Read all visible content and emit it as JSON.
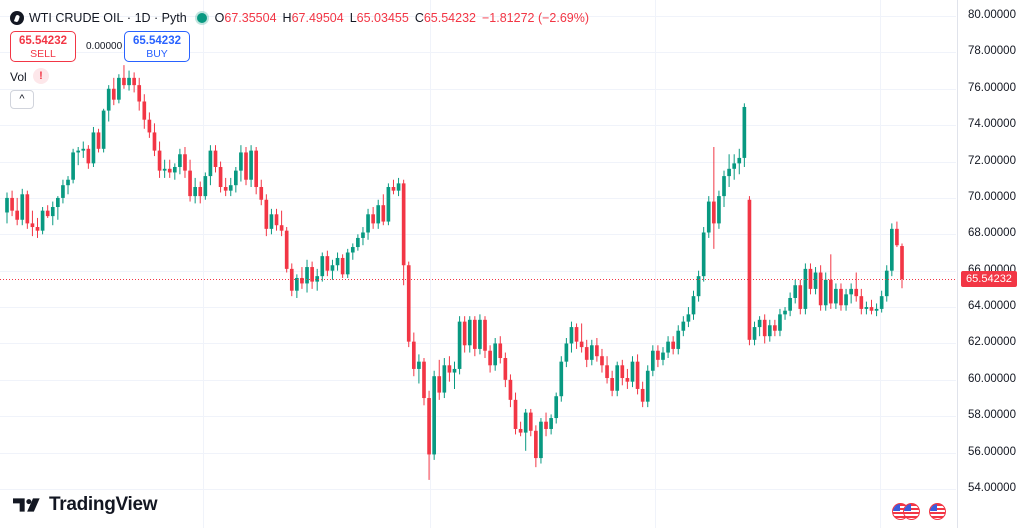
{
  "legend": {
    "symbol": "WTI CRUDE OIL",
    "interval": "1D",
    "source": "Pyth",
    "open_key": "O",
    "open": "67.35504",
    "high_key": "H",
    "high": "67.49504",
    "low_key": "L",
    "low": "65.03455",
    "close_key": "C",
    "close": "65.54232",
    "change": "−1.81272 (−2.69%)"
  },
  "trade": {
    "sell_price": "65.54232",
    "sell_label": "SELL",
    "buy_price": "65.54232",
    "buy_label": "BUY",
    "spread": "0.00000"
  },
  "volume": {
    "label": "Vol",
    "warning": "!"
  },
  "collapse_glyph": "^",
  "brand": {
    "name": "TradingView"
  },
  "colors": {
    "up": "#089981",
    "down": "#f23645",
    "accent": "#2962ff",
    "grid": "#f0f3fa"
  },
  "icons": [
    "symbol-icon",
    "live-dot-icon",
    "warning-icon",
    "chevron-up-icon",
    "tradingview-logo-icon",
    "us-flag-icon"
  ],
  "chart_data": {
    "type": "candlestick",
    "ylim": [
      53.0,
      80.8
    ],
    "yticks": [
      "80.00000",
      "78.00000",
      "76.00000",
      "74.00000",
      "72.00000",
      "70.00000",
      "68.00000",
      "66.00000",
      "64.00000",
      "62.00000",
      "60.00000",
      "58.00000",
      "56.00000",
      "54.00000"
    ],
    "last_price": "65.54232",
    "grid": true,
    "candles": [
      [
        69.2,
        70.3,
        68.6,
        70.0
      ],
      [
        70.0,
        70.4,
        69.0,
        69.3
      ],
      [
        69.3,
        70.0,
        68.5,
        68.8
      ],
      [
        68.8,
        70.5,
        68.5,
        70.2
      ],
      [
        70.2,
        70.4,
        68.3,
        68.6
      ],
      [
        68.6,
        69.3,
        67.9,
        68.4
      ],
      [
        68.4,
        68.9,
        67.8,
        68.2
      ],
      [
        68.2,
        69.5,
        68.0,
        69.3
      ],
      [
        69.3,
        69.6,
        68.9,
        69.0
      ],
      [
        69.0,
        69.8,
        68.5,
        69.5
      ],
      [
        69.5,
        70.1,
        68.8,
        70.0
      ],
      [
        70.0,
        71.0,
        69.7,
        70.7
      ],
      [
        70.7,
        71.2,
        70.2,
        71.0
      ],
      [
        71.0,
        72.7,
        70.8,
        72.5
      ],
      [
        72.5,
        72.8,
        71.8,
        72.6
      ],
      [
        72.6,
        73.1,
        72.2,
        72.7
      ],
      [
        72.7,
        72.9,
        71.6,
        71.9
      ],
      [
        71.9,
        73.9,
        71.7,
        73.6
      ],
      [
        73.6,
        73.8,
        72.5,
        72.7
      ],
      [
        72.7,
        74.9,
        72.5,
        74.8
      ],
      [
        74.8,
        76.2,
        74.2,
        76.0
      ],
      [
        76.0,
        76.6,
        75.1,
        75.4
      ],
      [
        75.4,
        76.8,
        75.2,
        76.6
      ],
      [
        76.6,
        77.3,
        76.0,
        76.2
      ],
      [
        76.2,
        77.0,
        75.9,
        76.6
      ],
      [
        76.6,
        76.9,
        75.8,
        76.2
      ],
      [
        76.2,
        76.6,
        74.8,
        75.3
      ],
      [
        75.3,
        75.7,
        73.8,
        74.3
      ],
      [
        74.3,
        74.7,
        73.3,
        73.6
      ],
      [
        73.6,
        74.1,
        72.3,
        72.6
      ],
      [
        72.6,
        73.1,
        71.1,
        71.5
      ],
      [
        71.5,
        72.1,
        71.1,
        71.6
      ],
      [
        71.6,
        72.1,
        71.1,
        71.4
      ],
      [
        71.4,
        71.9,
        71.0,
        71.7
      ],
      [
        71.7,
        72.7,
        71.3,
        72.4
      ],
      [
        72.4,
        72.8,
        71.1,
        71.5
      ],
      [
        71.5,
        72.1,
        69.8,
        70.1
      ],
      [
        70.1,
        71.1,
        69.7,
        70.6
      ],
      [
        70.6,
        70.9,
        69.7,
        70.1
      ],
      [
        70.1,
        71.4,
        69.9,
        71.2
      ],
      [
        71.2,
        72.9,
        70.7,
        72.6
      ],
      [
        72.6,
        72.9,
        71.4,
        71.7
      ],
      [
        71.7,
        72.0,
        70.3,
        70.6
      ],
      [
        70.6,
        71.1,
        70.1,
        70.4
      ],
      [
        70.4,
        71.1,
        70.1,
        70.7
      ],
      [
        70.7,
        71.7,
        70.3,
        71.5
      ],
      [
        71.5,
        72.9,
        70.9,
        72.5
      ],
      [
        72.5,
        72.8,
        70.7,
        71.0
      ],
      [
        71.0,
        72.9,
        70.6,
        72.6
      ],
      [
        72.6,
        72.8,
        70.2,
        70.6
      ],
      [
        70.6,
        71.0,
        69.6,
        69.9
      ],
      [
        69.9,
        70.2,
        67.9,
        68.3
      ],
      [
        68.3,
        69.4,
        68.0,
        69.1
      ],
      [
        69.1,
        69.4,
        68.2,
        68.5
      ],
      [
        68.5,
        69.3,
        67.9,
        68.2
      ],
      [
        68.2,
        68.4,
        65.9,
        66.1
      ],
      [
        66.1,
        66.4,
        64.6,
        64.9
      ],
      [
        64.9,
        65.8,
        64.5,
        65.6
      ],
      [
        65.6,
        66.2,
        65.0,
        65.3
      ],
      [
        65.3,
        66.6,
        64.8,
        66.2
      ],
      [
        66.2,
        66.5,
        65.0,
        65.4
      ],
      [
        65.4,
        66.1,
        64.9,
        65.7
      ],
      [
        65.7,
        67.0,
        65.4,
        66.8
      ],
      [
        66.8,
        67.1,
        65.7,
        66.0
      ],
      [
        66.0,
        66.6,
        65.5,
        66.3
      ],
      [
        66.3,
        67.0,
        66.0,
        66.7
      ],
      [
        66.7,
        66.9,
        65.6,
        65.8
      ],
      [
        65.8,
        67.2,
        65.6,
        67.0
      ],
      [
        67.0,
        67.5,
        66.6,
        67.3
      ],
      [
        67.3,
        68.0,
        67.1,
        67.8
      ],
      [
        67.8,
        68.4,
        67.4,
        68.1
      ],
      [
        68.1,
        69.4,
        67.7,
        69.1
      ],
      [
        69.1,
        69.5,
        68.3,
        68.6
      ],
      [
        68.6,
        69.9,
        68.3,
        69.6
      ],
      [
        69.6,
        70.2,
        68.5,
        68.7
      ],
      [
        68.7,
        70.8,
        68.5,
        70.6
      ],
      [
        70.6,
        71.0,
        70.2,
        70.4
      ],
      [
        70.4,
        71.1,
        70.1,
        70.8
      ],
      [
        70.8,
        71.0,
        65.2,
        66.3
      ],
      [
        66.3,
        66.5,
        61.8,
        62.1
      ],
      [
        62.1,
        62.6,
        60.2,
        60.6
      ],
      [
        60.6,
        61.4,
        59.8,
        61.0
      ],
      [
        61.0,
        61.2,
        58.6,
        59.0
      ],
      [
        59.0,
        59.4,
        54.5,
        55.9
      ],
      [
        55.9,
        60.5,
        55.6,
        60.2
      ],
      [
        60.2,
        61.1,
        58.9,
        59.3
      ],
      [
        59.3,
        61.2,
        59.0,
        60.8
      ],
      [
        60.8,
        61.3,
        59.9,
        60.4
      ],
      [
        60.4,
        61.0,
        59.5,
        60.6
      ],
      [
        60.6,
        63.5,
        60.3,
        63.2
      ],
      [
        63.2,
        63.5,
        61.5,
        61.9
      ],
      [
        61.9,
        63.5,
        61.5,
        63.3
      ],
      [
        63.3,
        63.5,
        61.3,
        61.7
      ],
      [
        61.7,
        63.6,
        61.4,
        63.3
      ],
      [
        63.3,
        63.5,
        61.2,
        61.6
      ],
      [
        61.6,
        61.9,
        60.4,
        60.8
      ],
      [
        60.8,
        62.3,
        60.5,
        62.0
      ],
      [
        62.0,
        62.4,
        60.9,
        61.2
      ],
      [
        61.2,
        61.5,
        59.6,
        60.0
      ],
      [
        60.0,
        60.3,
        58.5,
        58.9
      ],
      [
        58.9,
        59.3,
        57.0,
        57.3
      ],
      [
        57.3,
        57.7,
        56.9,
        57.1
      ],
      [
        57.1,
        58.4,
        56.1,
        58.2
      ],
      [
        58.2,
        58.4,
        56.9,
        57.2
      ],
      [
        57.2,
        57.5,
        55.2,
        55.7
      ],
      [
        55.7,
        57.9,
        55.4,
        57.7
      ],
      [
        57.7,
        58.2,
        56.9,
        57.3
      ],
      [
        57.3,
        58.1,
        57.0,
        57.9
      ],
      [
        57.9,
        59.3,
        57.6,
        59.1
      ],
      [
        59.1,
        61.3,
        58.8,
        61.0
      ],
      [
        61.0,
        62.3,
        60.7,
        62.0
      ],
      [
        62.0,
        63.2,
        61.5,
        62.9
      ],
      [
        62.9,
        63.1,
        61.7,
        62.1
      ],
      [
        62.1,
        63.1,
        61.5,
        61.8
      ],
      [
        61.8,
        62.2,
        60.7,
        61.1
      ],
      [
        61.1,
        62.2,
        60.8,
        61.9
      ],
      [
        61.9,
        62.3,
        61.0,
        61.3
      ],
      [
        61.3,
        61.7,
        60.4,
        60.8
      ],
      [
        60.8,
        61.3,
        59.8,
        60.1
      ],
      [
        60.1,
        60.5,
        59.1,
        59.4
      ],
      [
        59.4,
        61.0,
        59.1,
        60.8
      ],
      [
        60.8,
        61.1,
        59.7,
        60.1
      ],
      [
        60.1,
        60.6,
        59.5,
        59.9
      ],
      [
        59.9,
        61.3,
        59.6,
        61.0
      ],
      [
        61.0,
        61.4,
        59.2,
        59.5
      ],
      [
        59.5,
        59.9,
        58.5,
        58.8
      ],
      [
        58.8,
        60.8,
        58.5,
        60.5
      ],
      [
        60.5,
        61.9,
        60.2,
        61.6
      ],
      [
        61.6,
        61.9,
        60.7,
        61.1
      ],
      [
        61.1,
        61.8,
        60.8,
        61.5
      ],
      [
        61.5,
        62.4,
        61.2,
        62.1
      ],
      [
        62.1,
        62.4,
        61.4,
        61.7
      ],
      [
        61.7,
        63.0,
        61.4,
        62.7
      ],
      [
        62.7,
        63.5,
        62.4,
        63.2
      ],
      [
        63.2,
        64.0,
        62.9,
        63.6
      ],
      [
        63.6,
        64.9,
        63.3,
        64.6
      ],
      [
        64.6,
        66.0,
        64.3,
        65.7
      ],
      [
        65.7,
        68.4,
        65.4,
        68.1
      ],
      [
        68.1,
        70.1,
        67.8,
        69.8
      ],
      [
        69.8,
        72.8,
        67.2,
        68.6
      ],
      [
        68.6,
        70.4,
        68.3,
        70.1
      ],
      [
        70.1,
        71.5,
        69.5,
        71.2
      ],
      [
        71.2,
        72.4,
        70.6,
        71.6
      ],
      [
        71.6,
        72.4,
        71.0,
        71.9
      ],
      [
        71.9,
        72.7,
        71.3,
        72.2
      ],
      [
        72.2,
        75.2,
        71.7,
        75.0
      ],
      [
        69.9,
        70.1,
        61.9,
        62.2
      ],
      [
        62.2,
        63.2,
        61.9,
        62.9
      ],
      [
        62.9,
        63.5,
        62.4,
        63.3
      ],
      [
        63.3,
        63.6,
        62.0,
        62.4
      ],
      [
        62.4,
        63.3,
        62.1,
        63.0
      ],
      [
        63.0,
        63.3,
        62.4,
        62.7
      ],
      [
        62.7,
        63.9,
        62.4,
        63.6
      ],
      [
        63.6,
        64.0,
        63.3,
        63.8
      ],
      [
        63.8,
        64.8,
        63.5,
        64.5
      ],
      [
        64.5,
        65.5,
        64.2,
        65.2
      ],
      [
        65.2,
        65.5,
        63.6,
        63.9
      ],
      [
        63.9,
        66.4,
        63.6,
        66.1
      ],
      [
        66.1,
        66.4,
        64.7,
        65.0
      ],
      [
        65.0,
        66.2,
        64.7,
        65.9
      ],
      [
        65.9,
        66.3,
        63.8,
        64.1
      ],
      [
        64.1,
        65.9,
        63.8,
        65.5
      ],
      [
        65.5,
        66.9,
        63.9,
        64.2
      ],
      [
        64.2,
        65.3,
        63.9,
        65.0
      ],
      [
        65.0,
        65.3,
        63.8,
        64.1
      ],
      [
        64.1,
        65.0,
        63.8,
        64.7
      ],
      [
        64.7,
        65.3,
        64.2,
        65.0
      ],
      [
        65.0,
        65.9,
        64.3,
        64.6
      ],
      [
        64.6,
        65.0,
        63.6,
        63.9
      ],
      [
        63.9,
        64.3,
        63.6,
        64.0
      ],
      [
        64.0,
        64.4,
        63.6,
        63.8
      ],
      [
        63.8,
        64.2,
        63.5,
        63.9
      ],
      [
        63.9,
        64.9,
        63.7,
        64.6
      ],
      [
        64.6,
        66.3,
        64.3,
        66.0
      ],
      [
        66.0,
        68.6,
        65.7,
        68.3
      ],
      [
        68.3,
        68.7,
        67.3,
        67.4
      ],
      [
        67.35504,
        67.49504,
        65.03455,
        65.54232
      ]
    ]
  }
}
